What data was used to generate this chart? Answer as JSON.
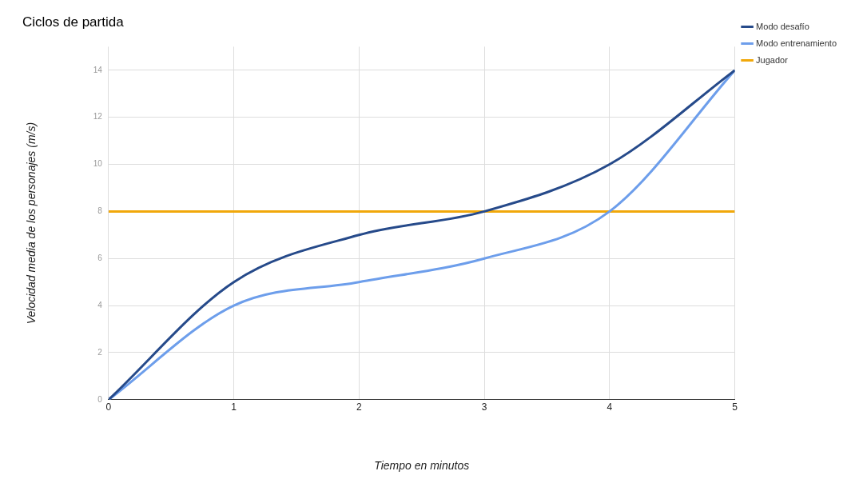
{
  "chart_data": {
    "type": "line",
    "title": "Ciclos de partida",
    "xlabel": "Tiempo en minutos",
    "ylabel": "Velocidad media de los personajes (m/s)",
    "x": [
      0,
      1,
      2,
      3,
      4,
      5
    ],
    "xlim": [
      0,
      5
    ],
    "xticks": [
      0,
      1,
      2,
      3,
      4,
      5
    ],
    "ylim": [
      0,
      15
    ],
    "yticks": [
      0,
      2,
      4,
      6,
      8,
      10,
      12,
      14
    ],
    "grid": true,
    "legend": "top right",
    "marker": "none",
    "line_style": "solid",
    "series": [
      {
        "name": "Modo desafío",
        "color": "#264a8a",
        "values": [
          0,
          5,
          7,
          8,
          10,
          14
        ]
      },
      {
        "name": "Modo entrenamiento",
        "color": "#6d9eeb",
        "values": [
          0,
          4,
          5,
          6,
          8,
          14
        ]
      },
      {
        "name": "Jugador",
        "color": "#f1a80a",
        "values": [
          8,
          8,
          8,
          8,
          8,
          8
        ]
      }
    ]
  }
}
